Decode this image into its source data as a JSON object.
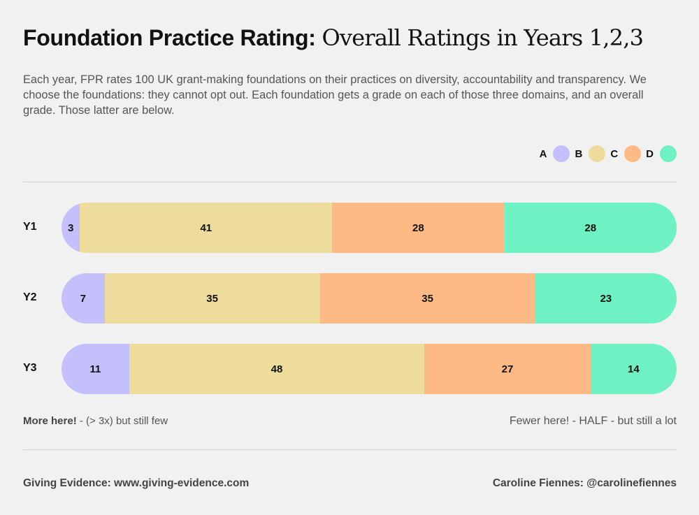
{
  "header": {
    "title_bold": "Foundation Practice Rating:",
    "title_serif": "Overall Ratings in Years 1,2,3",
    "description": "Each year, FPR rates 100 UK grant-making foundations on their practices on diversity, accountability and transparency. We choose the foundations: they cannot opt out. Each foundation gets a grade on each of those three domains, and an overall grade. Those latter are below."
  },
  "legend": [
    {
      "label": "A",
      "color": "#c4c0fb"
    },
    {
      "label": "B",
      "color": "#eedc9c"
    },
    {
      "label": "C",
      "color": "#feba85"
    },
    {
      "label": "D",
      "color": "#6ef2c4"
    }
  ],
  "chart_data": {
    "type": "bar",
    "orientation": "horizontal",
    "stacked": true,
    "title": "Foundation Practice Rating: Overall Ratings in Years 1,2,3",
    "categories": [
      "Y1",
      "Y2",
      "Y3"
    ],
    "series": [
      {
        "name": "A",
        "values": [
          3,
          7,
          11
        ]
      },
      {
        "name": "B",
        "values": [
          41,
          35,
          48
        ]
      },
      {
        "name": "C",
        "values": [
          28,
          35,
          27
        ]
      },
      {
        "name": "D",
        "values": [
          28,
          23,
          14
        ]
      }
    ],
    "xlabel": "",
    "ylabel": "",
    "legend_position": "top-right"
  },
  "notes": {
    "left_bold": "More here!",
    "left_rest": " - (> 3x) but still few",
    "right": "Fewer here! - HALF - but still a lot"
  },
  "footer": {
    "left": "Giving Evidence: www.giving-evidence.com",
    "right": "Caroline Fiennes: @carolinefiennes"
  }
}
